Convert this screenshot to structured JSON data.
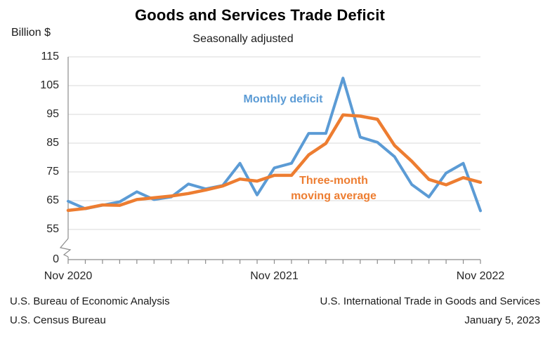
{
  "header": {
    "title": "Goods and Services Trade Deficit",
    "subtitle": "Seasonally adjusted"
  },
  "chart_data": {
    "type": "line",
    "title": "Goods and Services Trade Deficit",
    "subtitle": "Seasonally adjusted",
    "ylabel": "Billion $",
    "xlabel": "",
    "grid": true,
    "legend_position": "inline-annotations",
    "ylim": [
      55,
      115
    ],
    "axis_break_to_zero": true,
    "y_ticks": [
      115,
      105,
      95,
      85,
      75,
      65,
      55
    ],
    "y_base_tick_label": "0",
    "categories": [
      "Nov 2020",
      "Dec 2020",
      "Jan 2021",
      "Feb 2021",
      "Mar 2021",
      "Apr 2021",
      "May 2021",
      "Jun 2021",
      "Jul 2021",
      "Aug 2021",
      "Sep 2021",
      "Oct 2021",
      "Nov 2021",
      "Dec 2021",
      "Jan 2022",
      "Feb 2022",
      "Mar 2022",
      "Apr 2022",
      "May 2022",
      "Jun 2022",
      "Jul 2022",
      "Aug 2022",
      "Sep 2022",
      "Oct 2022",
      "Nov 2022"
    ],
    "x_tick_labels": [
      {
        "label": "Nov 2020",
        "index": 0
      },
      {
        "label": "Nov 2021",
        "index": 12
      },
      {
        "label": "Nov 2022",
        "index": 24
      }
    ],
    "series": [
      {
        "name": "Monthly deficit",
        "color": "#5B9BD5",
        "values": [
          64.8,
          62.2,
          63.4,
          64.6,
          68.1,
          65.4,
          66.3,
          70.8,
          69.1,
          70.3,
          78.0,
          67.0,
          76.4,
          78.0,
          88.4,
          88.4,
          107.6,
          87.1,
          85.3,
          80.3,
          70.6,
          66.3,
          74.6,
          78.0,
          61.5
        ]
      },
      {
        "name": "Three-month moving average",
        "color": "#ED7D31",
        "values": [
          61.6,
          62.3,
          63.5,
          63.4,
          65.4,
          66.0,
          66.6,
          67.5,
          68.7,
          70.1,
          72.5,
          71.8,
          73.8,
          73.8,
          80.9,
          84.9,
          94.8,
          94.4,
          93.3,
          84.2,
          78.7,
          72.4,
          70.5,
          73.0,
          71.4
        ]
      }
    ],
    "colors": {
      "gridline": "#D9D9D9",
      "axis": "#8C8C8C",
      "monthly_deficit": "#5B9BD5",
      "moving_average": "#ED7D31"
    }
  },
  "annotations": {
    "monthly": {
      "text": "Monthly deficit",
      "color": "#5B9BD5"
    },
    "moving_average": {
      "text": "Three-month moving average",
      "color": "#ED7D31"
    }
  },
  "footer": {
    "left_line1": "U.S. Bureau of Economic Analysis",
    "left_line2": "U.S. Census Bureau",
    "right_line1": "U.S. International Trade in Goods and Services",
    "right_line2": "January 5, 2023"
  }
}
